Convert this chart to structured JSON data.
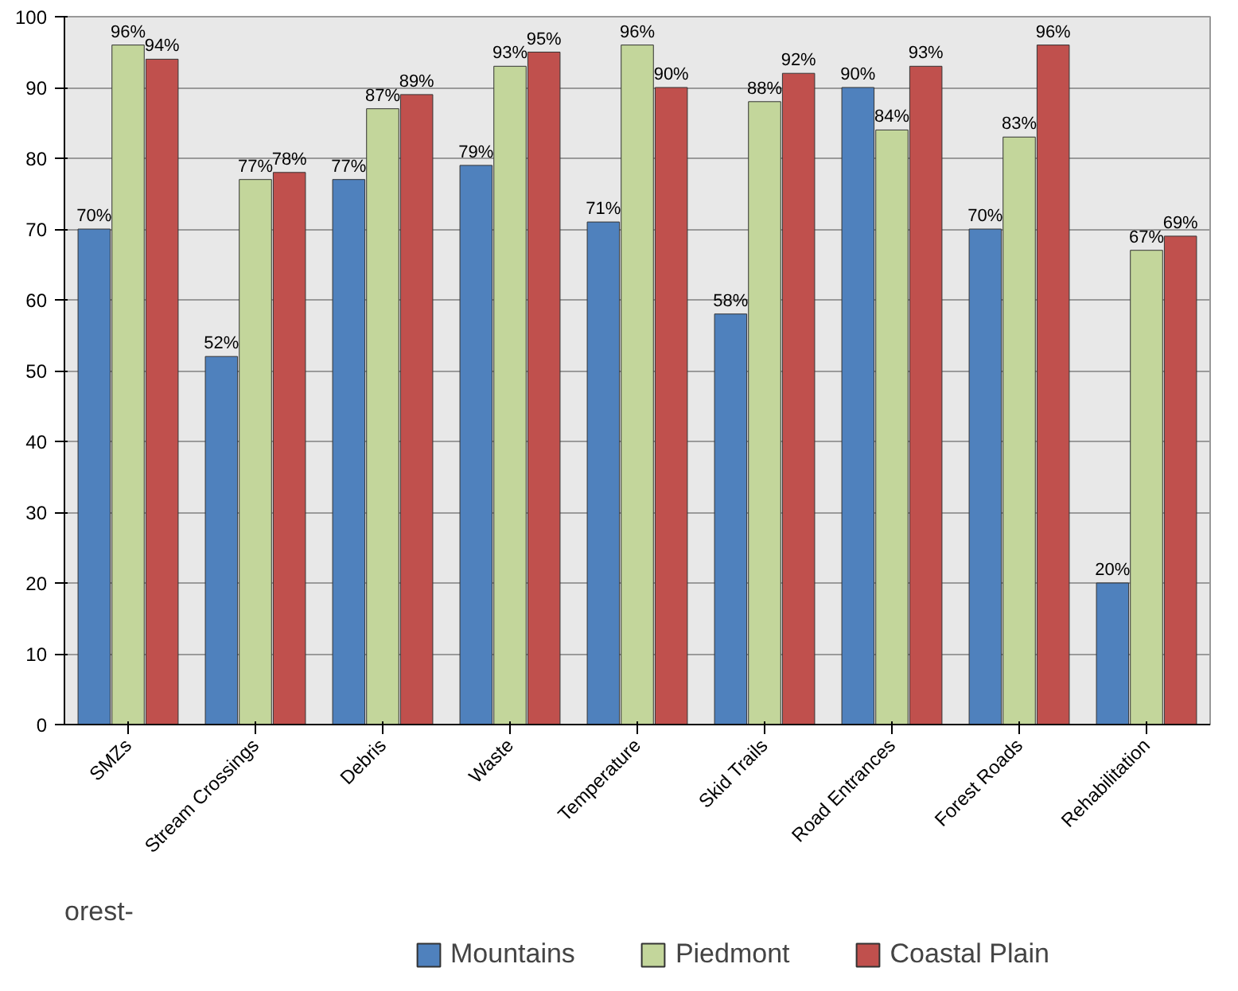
{
  "chart_data": {
    "type": "bar",
    "categories": [
      "SMZs",
      "Stream Crossings",
      "Debris",
      "Waste",
      "Temperature",
      "Skid Trails",
      "Road Entrances",
      "Forest Roads",
      "Rehabilitation"
    ],
    "series": [
      {
        "name": "Mountains",
        "color": "#4f81bd",
        "values": [
          70,
          52,
          77,
          79,
          71,
          58,
          90,
          70,
          20
        ],
        "value_labels": [
          "70%",
          "52%",
          "77%",
          "79%",
          "71%",
          "58%",
          "90%",
          "70%",
          "20%"
        ]
      },
      {
        "name": "Piedmont",
        "color": "#c3d69b",
        "values": [
          96,
          77,
          87,
          93,
          96,
          88,
          84,
          83,
          67
        ],
        "value_labels": [
          "96%",
          "77%",
          "87%",
          "93%",
          "96%",
          "88%",
          "84%",
          "83%",
          "67%"
        ]
      },
      {
        "name": "Coastal Plain",
        "color": "#c0504d",
        "values": [
          94,
          78,
          89,
          95,
          90,
          92,
          93,
          96,
          69
        ],
        "value_labels": [
          "94%",
          "78%",
          "89%",
          "95%",
          "90%",
          "92%",
          "93%",
          "96%",
          "69%"
        ]
      }
    ],
    "ylim": [
      0,
      100
    ],
    "yticks": [
      0,
      10,
      20,
      30,
      40,
      50,
      60,
      70,
      80,
      90,
      100
    ],
    "grid": "y",
    "legend": "bottom",
    "annotations": [
      "orest-"
    ]
  }
}
